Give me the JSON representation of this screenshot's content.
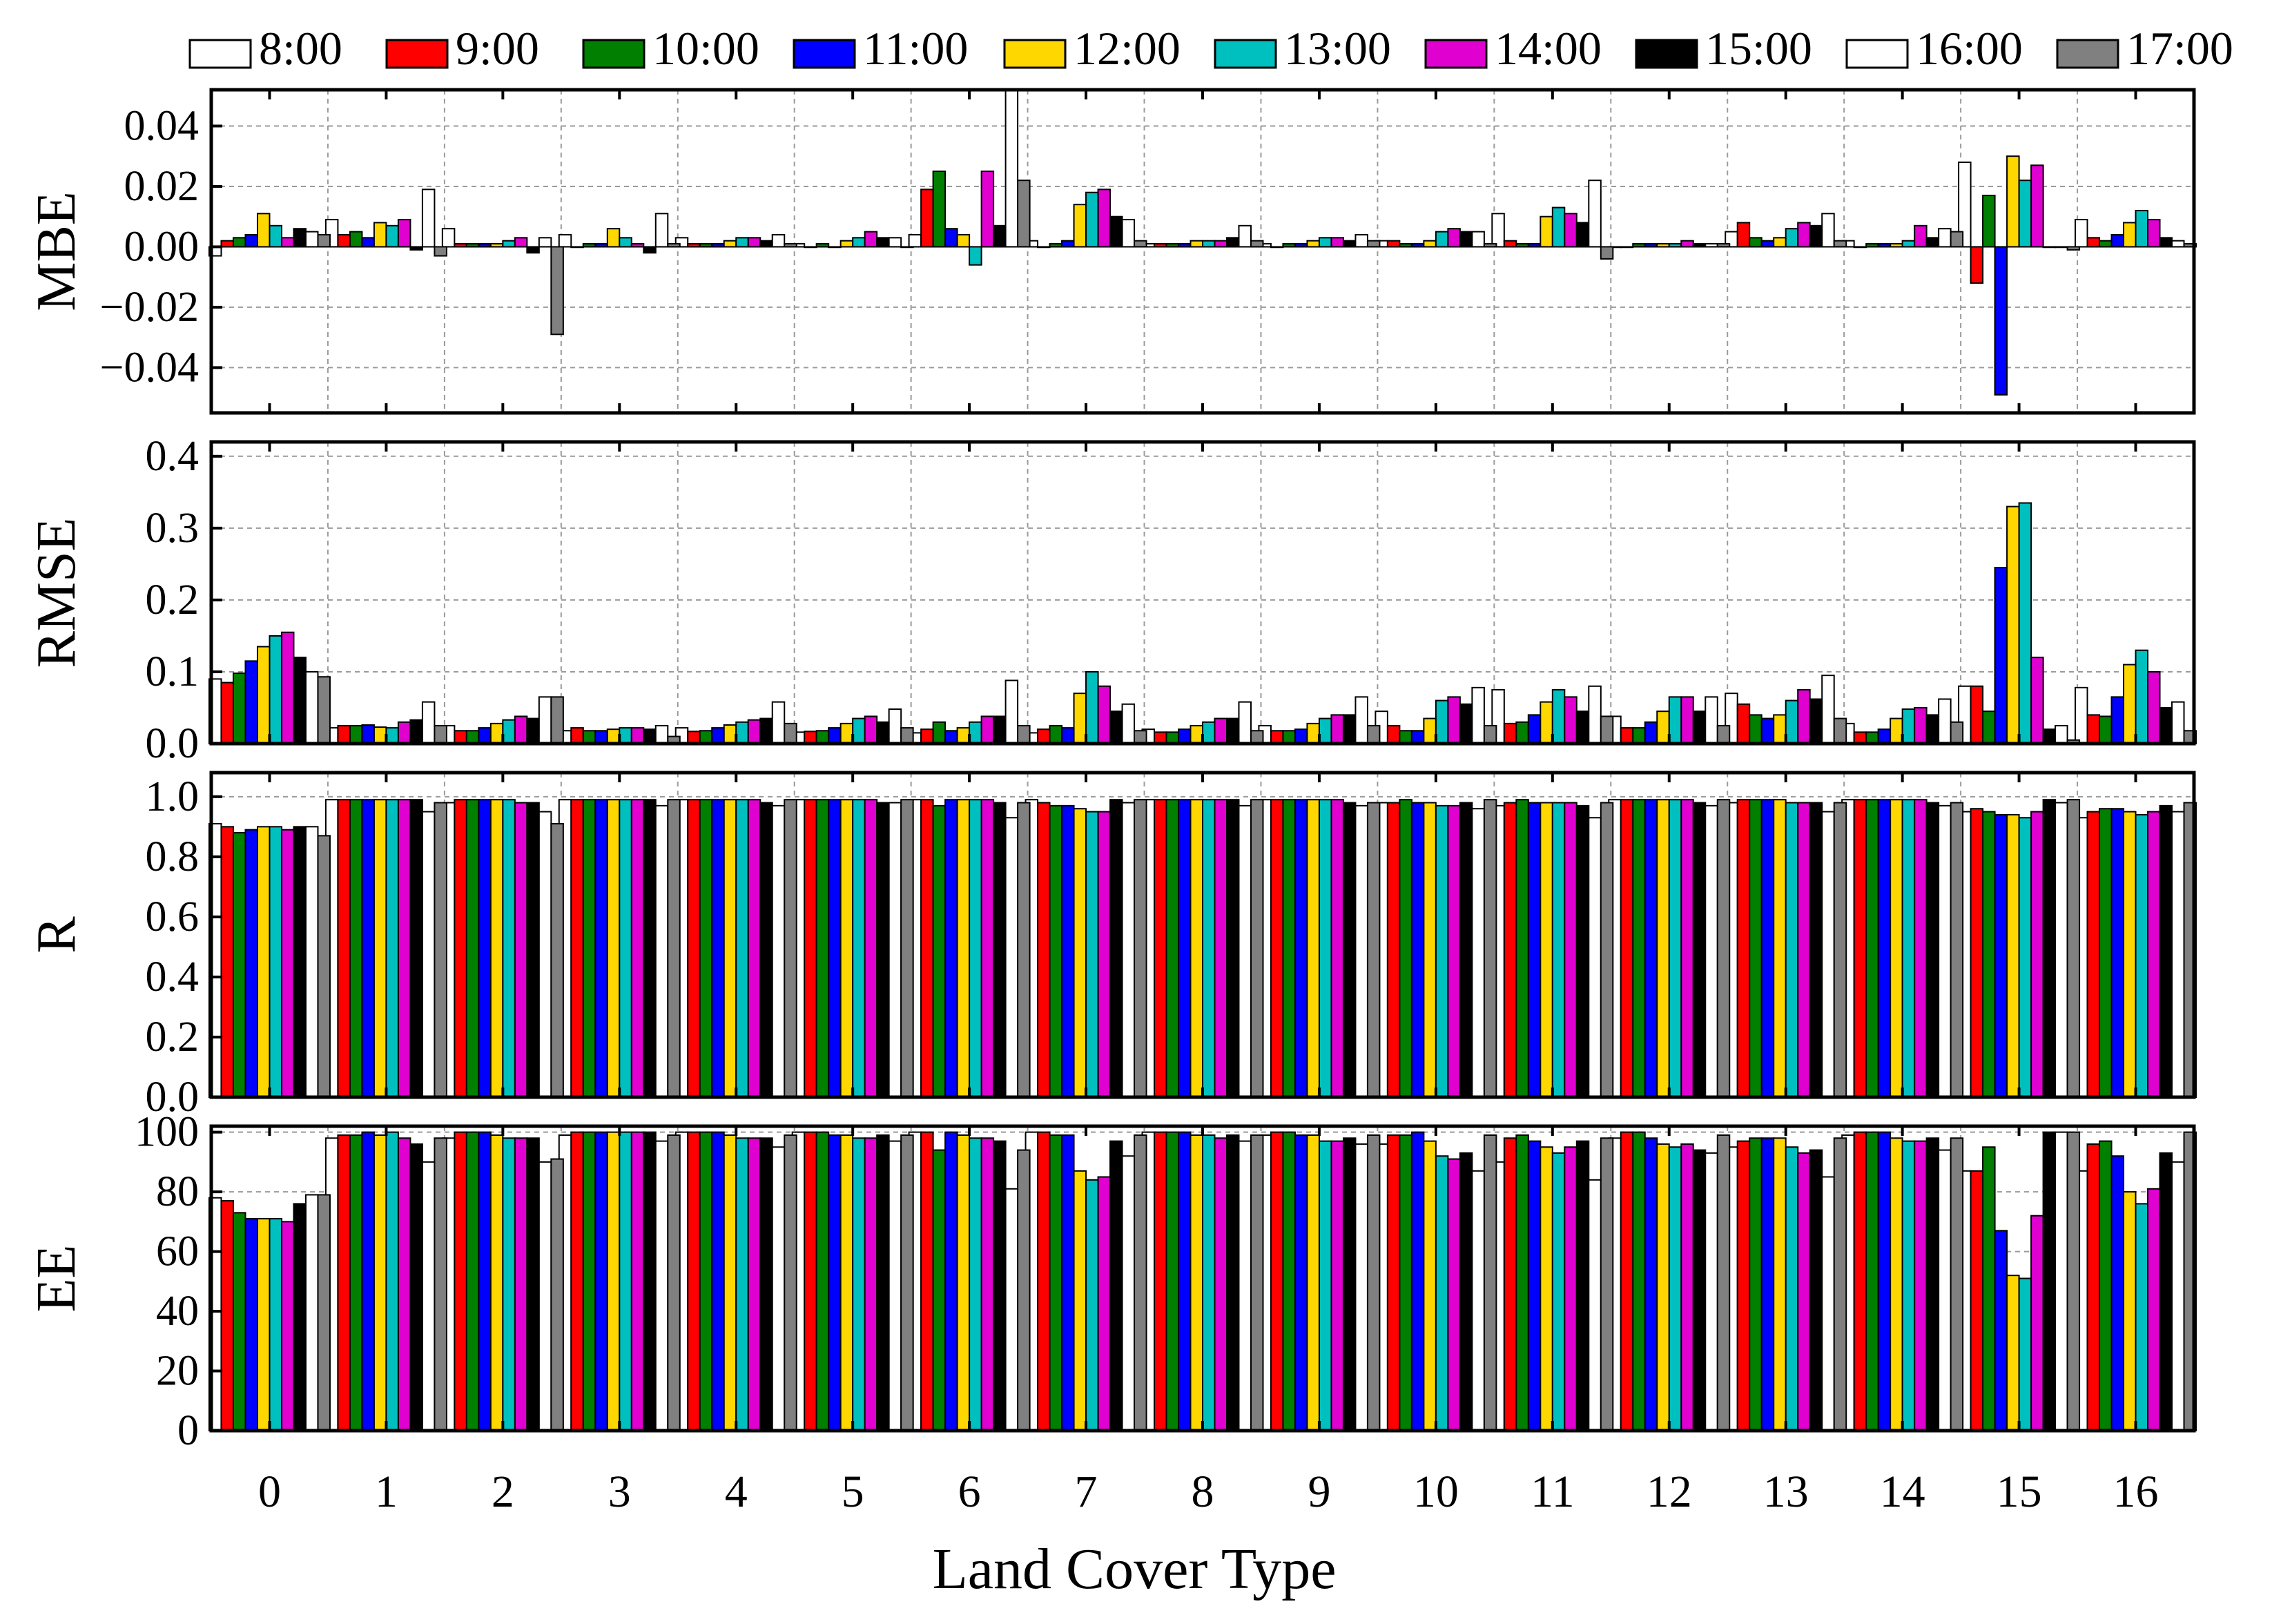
{
  "chart_data": {
    "type": "bar",
    "xlabel": "Land Cover Type",
    "categories": [
      "0",
      "1",
      "2",
      "3",
      "4",
      "5",
      "6",
      "7",
      "8",
      "9",
      "10",
      "11",
      "12",
      "13",
      "14",
      "15",
      "16"
    ],
    "legend": {
      "position": "top",
      "entries": [
        {
          "label": "8:00",
          "color": "#ffffff"
        },
        {
          "label": "9:00",
          "color": "#ff0000"
        },
        {
          "label": "10:00",
          "color": "#007f00"
        },
        {
          "label": "11:00",
          "color": "#0000ff"
        },
        {
          "label": "12:00",
          "color": "#ffd700"
        },
        {
          "label": "13:00",
          "color": "#00bfbf"
        },
        {
          "label": "14:00",
          "color": "#e000d0"
        },
        {
          "label": "15:00",
          "color": "#000000"
        },
        {
          "label": "16:00",
          "color": "#ffffff"
        },
        {
          "label": "17:00",
          "color": "#808080"
        }
      ]
    },
    "panels": [
      {
        "ylabel": "MBE",
        "ylim": [
          -0.055,
          0.052
        ],
        "yticks": [
          -0.04,
          -0.02,
          0.0,
          0.02,
          0.04
        ],
        "ytick_labels": [
          "−0.04",
          "−0.02",
          "0.00",
          "0.02",
          "0.04"
        ],
        "grid": true,
        "series": [
          {
            "name": "8:00",
            "values": [
              -0.003,
              0.009,
              0.006,
              0.004,
              0.003,
              0.001,
              0.004,
              0.002,
              0.001,
              0.001,
              0.002,
              0.011,
              0.0,
              0.005,
              0.002,
              0.028,
              0.009
            ]
          },
          {
            "name": "9:00",
            "values": [
              0.002,
              0.004,
              0.001,
              0.0,
              0.001,
              0.0,
              0.019,
              0.0,
              0.001,
              0.0,
              0.002,
              0.002,
              0.0,
              0.008,
              0.0,
              -0.012,
              0.003
            ]
          },
          {
            "name": "10:00",
            "values": [
              0.003,
              0.005,
              0.001,
              0.001,
              0.001,
              0.001,
              0.025,
              0.001,
              0.001,
              0.001,
              0.001,
              0.001,
              0.001,
              0.003,
              0.001,
              0.017,
              0.002
            ]
          },
          {
            "name": "11:00",
            "values": [
              0.004,
              0.003,
              0.001,
              0.001,
              0.001,
              0.0,
              0.006,
              0.002,
              0.001,
              0.001,
              0.001,
              0.001,
              0.001,
              0.002,
              0.001,
              -0.049,
              0.004
            ]
          },
          {
            "name": "12:00",
            "values": [
              0.011,
              0.008,
              0.001,
              0.006,
              0.002,
              0.002,
              0.004,
              0.014,
              0.002,
              0.002,
              0.002,
              0.01,
              0.001,
              0.003,
              0.001,
              0.03,
              0.008
            ]
          },
          {
            "name": "13:00",
            "values": [
              0.007,
              0.007,
              0.002,
              0.003,
              0.003,
              0.003,
              -0.006,
              0.018,
              0.002,
              0.003,
              0.005,
              0.013,
              0.001,
              0.006,
              0.002,
              0.022,
              0.012
            ]
          },
          {
            "name": "14:00",
            "values": [
              0.003,
              0.009,
              0.003,
              0.001,
              0.003,
              0.005,
              0.025,
              0.019,
              0.002,
              0.003,
              0.006,
              0.011,
              0.002,
              0.008,
              0.007,
              0.027,
              0.009
            ]
          },
          {
            "name": "15:00",
            "values": [
              0.006,
              -0.001,
              -0.002,
              -0.002,
              0.002,
              0.003,
              0.007,
              0.01,
              0.003,
              0.002,
              0.005,
              0.008,
              0.001,
              0.007,
              0.003,
              0.0,
              0.003
            ]
          },
          {
            "name": "16:00",
            "values": [
              0.005,
              0.019,
              0.003,
              0.011,
              0.004,
              0.003,
              0.052,
              0.009,
              0.007,
              0.004,
              0.005,
              0.022,
              0.001,
              0.011,
              0.006,
              0.0,
              0.002
            ]
          },
          {
            "name": "17:00",
            "values": [
              0.004,
              -0.003,
              -0.029,
              0.001,
              0.001,
              0.0,
              0.022,
              0.002,
              0.002,
              0.002,
              0.001,
              -0.004,
              0.001,
              0.002,
              0.005,
              -0.001,
              0.001
            ]
          }
        ]
      },
      {
        "ylabel": "RMSE",
        "ylim": [
          0.0,
          0.42
        ],
        "yticks": [
          0.0,
          0.1,
          0.2,
          0.3,
          0.4
        ],
        "ytick_labels": [
          "0.0",
          "0.1",
          "0.2",
          "0.3",
          "0.4"
        ],
        "grid": true,
        "series": [
          {
            "name": "8:00",
            "values": [
              0.09,
              0.022,
              0.025,
              0.018,
              0.022,
              0.016,
              0.015,
              0.015,
              0.02,
              0.025,
              0.045,
              0.075,
              0.038,
              0.07,
              0.028,
              0.08,
              0.078
            ]
          },
          {
            "name": "9:00",
            "values": [
              0.085,
              0.025,
              0.018,
              0.022,
              0.017,
              0.017,
              0.02,
              0.02,
              0.016,
              0.018,
              0.025,
              0.028,
              0.022,
              0.055,
              0.016,
              0.08,
              0.04
            ]
          },
          {
            "name": "10:00",
            "values": [
              0.098,
              0.025,
              0.018,
              0.018,
              0.018,
              0.018,
              0.03,
              0.025,
              0.016,
              0.018,
              0.018,
              0.03,
              0.022,
              0.04,
              0.016,
              0.045,
              0.038
            ]
          },
          {
            "name": "11:00",
            "values": [
              0.115,
              0.026,
              0.022,
              0.018,
              0.022,
              0.022,
              0.018,
              0.022,
              0.02,
              0.02,
              0.018,
              0.04,
              0.03,
              0.035,
              0.02,
              0.245,
              0.065
            ]
          },
          {
            "name": "12:00",
            "values": [
              0.135,
              0.023,
              0.028,
              0.02,
              0.026,
              0.028,
              0.022,
              0.07,
              0.025,
              0.028,
              0.035,
              0.058,
              0.045,
              0.04,
              0.035,
              0.33,
              0.11
            ]
          },
          {
            "name": "13:00",
            "values": [
              0.15,
              0.022,
              0.033,
              0.022,
              0.03,
              0.035,
              0.03,
              0.1,
              0.03,
              0.035,
              0.06,
              0.075,
              0.065,
              0.06,
              0.048,
              0.335,
              0.13
            ]
          },
          {
            "name": "14:00",
            "values": [
              0.155,
              0.03,
              0.038,
              0.022,
              0.033,
              0.038,
              0.038,
              0.08,
              0.035,
              0.04,
              0.065,
              0.065,
              0.065,
              0.075,
              0.05,
              0.12,
              0.1
            ]
          },
          {
            "name": "15:00",
            "values": [
              0.12,
              0.033,
              0.035,
              0.02,
              0.035,
              0.03,
              0.038,
              0.045,
              0.035,
              0.04,
              0.055,
              0.045,
              0.045,
              0.062,
              0.04,
              0.02,
              0.05
            ]
          },
          {
            "name": "16:00",
            "values": [
              0.1,
              0.058,
              0.065,
              0.025,
              0.058,
              0.048,
              0.088,
              0.055,
              0.058,
              0.065,
              0.078,
              0.08,
              0.065,
              0.095,
              0.062,
              0.025,
              0.058
            ]
          },
          {
            "name": "17:00",
            "values": [
              0.093,
              0.025,
              0.065,
              0.01,
              0.028,
              0.022,
              0.025,
              0.018,
              0.018,
              0.025,
              0.025,
              0.038,
              0.025,
              0.035,
              0.03,
              0.005,
              0.018
            ]
          }
        ]
      },
      {
        "ylabel": "R",
        "ylim": [
          0.0,
          1.08
        ],
        "yticks": [
          0.0,
          0.2,
          0.4,
          0.6,
          0.8,
          1.0
        ],
        "ytick_labels": [
          "0.0",
          "0.2",
          "0.4",
          "0.6",
          "0.8",
          "1.0"
        ],
        "grid": true,
        "series": [
          {
            "name": "8:00",
            "values": [
              0.91,
              0.99,
              0.98,
              0.99,
              0.99,
              0.99,
              0.99,
              0.99,
              0.99,
              0.99,
              0.98,
              0.97,
              0.99,
              0.98,
              0.99,
              0.95,
              0.93
            ]
          },
          {
            "name": "9:00",
            "values": [
              0.9,
              0.99,
              0.99,
              0.99,
              0.99,
              0.99,
              0.99,
              0.98,
              0.99,
              0.99,
              0.98,
              0.98,
              0.99,
              0.99,
              0.99,
              0.96,
              0.95
            ]
          },
          {
            "name": "10:00",
            "values": [
              0.88,
              0.99,
              0.99,
              0.99,
              0.99,
              0.99,
              0.97,
              0.97,
              0.99,
              0.99,
              0.99,
              0.99,
              0.99,
              0.99,
              0.99,
              0.95,
              0.96
            ]
          },
          {
            "name": "11:00",
            "values": [
              0.89,
              0.99,
              0.99,
              0.99,
              0.99,
              0.99,
              0.99,
              0.97,
              0.99,
              0.99,
              0.98,
              0.98,
              0.99,
              0.99,
              0.99,
              0.94,
              0.96
            ]
          },
          {
            "name": "12:00",
            "values": [
              0.9,
              0.99,
              0.99,
              0.99,
              0.99,
              0.99,
              0.99,
              0.96,
              0.99,
              0.99,
              0.98,
              0.98,
              0.99,
              0.99,
              0.99,
              0.94,
              0.95
            ]
          },
          {
            "name": "13:00",
            "values": [
              0.9,
              0.99,
              0.99,
              0.99,
              0.99,
              0.99,
              0.99,
              0.95,
              0.99,
              0.99,
              0.97,
              0.98,
              0.99,
              0.98,
              0.99,
              0.93,
              0.94
            ]
          },
          {
            "name": "14:00",
            "values": [
              0.89,
              0.99,
              0.98,
              0.99,
              0.99,
              0.99,
              0.99,
              0.95,
              0.99,
              0.99,
              0.97,
              0.98,
              0.99,
              0.98,
              0.99,
              0.95,
              0.95
            ]
          },
          {
            "name": "15:00",
            "values": [
              0.9,
              0.99,
              0.98,
              0.99,
              0.98,
              0.98,
              0.98,
              0.99,
              0.99,
              0.98,
              0.98,
              0.97,
              0.98,
              0.98,
              0.98,
              0.99,
              0.97
            ]
          },
          {
            "name": "16:00",
            "values": [
              0.9,
              0.95,
              0.95,
              0.97,
              0.97,
              0.98,
              0.93,
              0.98,
              0.97,
              0.97,
              0.96,
              0.93,
              0.97,
              0.95,
              0.97,
              0.98,
              0.95
            ]
          },
          {
            "name": "17:00",
            "values": [
              0.87,
              0.98,
              0.91,
              0.99,
              0.99,
              0.99,
              0.98,
              0.99,
              0.99,
              0.98,
              0.99,
              0.98,
              0.99,
              0.98,
              0.98,
              0.99,
              0.98
            ]
          }
        ]
      },
      {
        "ylabel": "EE",
        "ylim": [
          0,
          102
        ],
        "yticks": [
          0,
          20,
          40,
          60,
          80,
          100
        ],
        "ytick_labels": [
          "0",
          "20",
          "40",
          "60",
          "80",
          "100"
        ],
        "grid": true,
        "series": [
          {
            "name": "8:00",
            "values": [
              78,
              98,
              98,
              99,
              100,
              100,
              100,
              100,
              100,
              99,
              96,
              90,
              98,
              95,
              99,
              87,
              87
            ]
          },
          {
            "name": "9:00",
            "values": [
              77,
              99,
              100,
              100,
              100,
              100,
              100,
              100,
              100,
              100,
              99,
              98,
              100,
              97,
              100,
              87,
              96
            ]
          },
          {
            "name": "10:00",
            "values": [
              73,
              99,
              100,
              100,
              100,
              100,
              94,
              99,
              100,
              100,
              99,
              99,
              100,
              98,
              100,
              95,
              97
            ]
          },
          {
            "name": "11:00",
            "values": [
              71,
              100,
              100,
              100,
              100,
              99,
              100,
              99,
              100,
              99,
              100,
              97,
              98,
              98,
              100,
              67,
              92
            ]
          },
          {
            "name": "12:00",
            "values": [
              71,
              99,
              99,
              100,
              99,
              99,
              99,
              87,
              99,
              99,
              97,
              95,
              96,
              98,
              98,
              52,
              80
            ]
          },
          {
            "name": "13:00",
            "values": [
              71,
              100,
              98,
              100,
              98,
              98,
              98,
              84,
              99,
              97,
              92,
              93,
              95,
              95,
              97,
              51,
              76
            ]
          },
          {
            "name": "14:00",
            "values": [
              70,
              98,
              98,
              100,
              98,
              98,
              98,
              85,
              98,
              97,
              91,
              95,
              96,
              93,
              97,
              72,
              81
            ]
          },
          {
            "name": "15:00",
            "values": [
              76,
              96,
              98,
              100,
              98,
              99,
              97,
              97,
              99,
              98,
              93,
              97,
              94,
              94,
              98,
              100,
              93
            ]
          },
          {
            "name": "16:00",
            "values": [
              79,
              90,
              90,
              97,
              95,
              97,
              81,
              92,
              97,
              96,
              87,
              84,
              93,
              85,
              94,
              100,
              90
            ]
          },
          {
            "name": "17:00",
            "values": [
              79,
              98,
              91,
              99,
              99,
              99,
              94,
              99,
              99,
              99,
              99,
              98,
              99,
              98,
              98,
              100,
              100
            ]
          }
        ]
      }
    ]
  }
}
